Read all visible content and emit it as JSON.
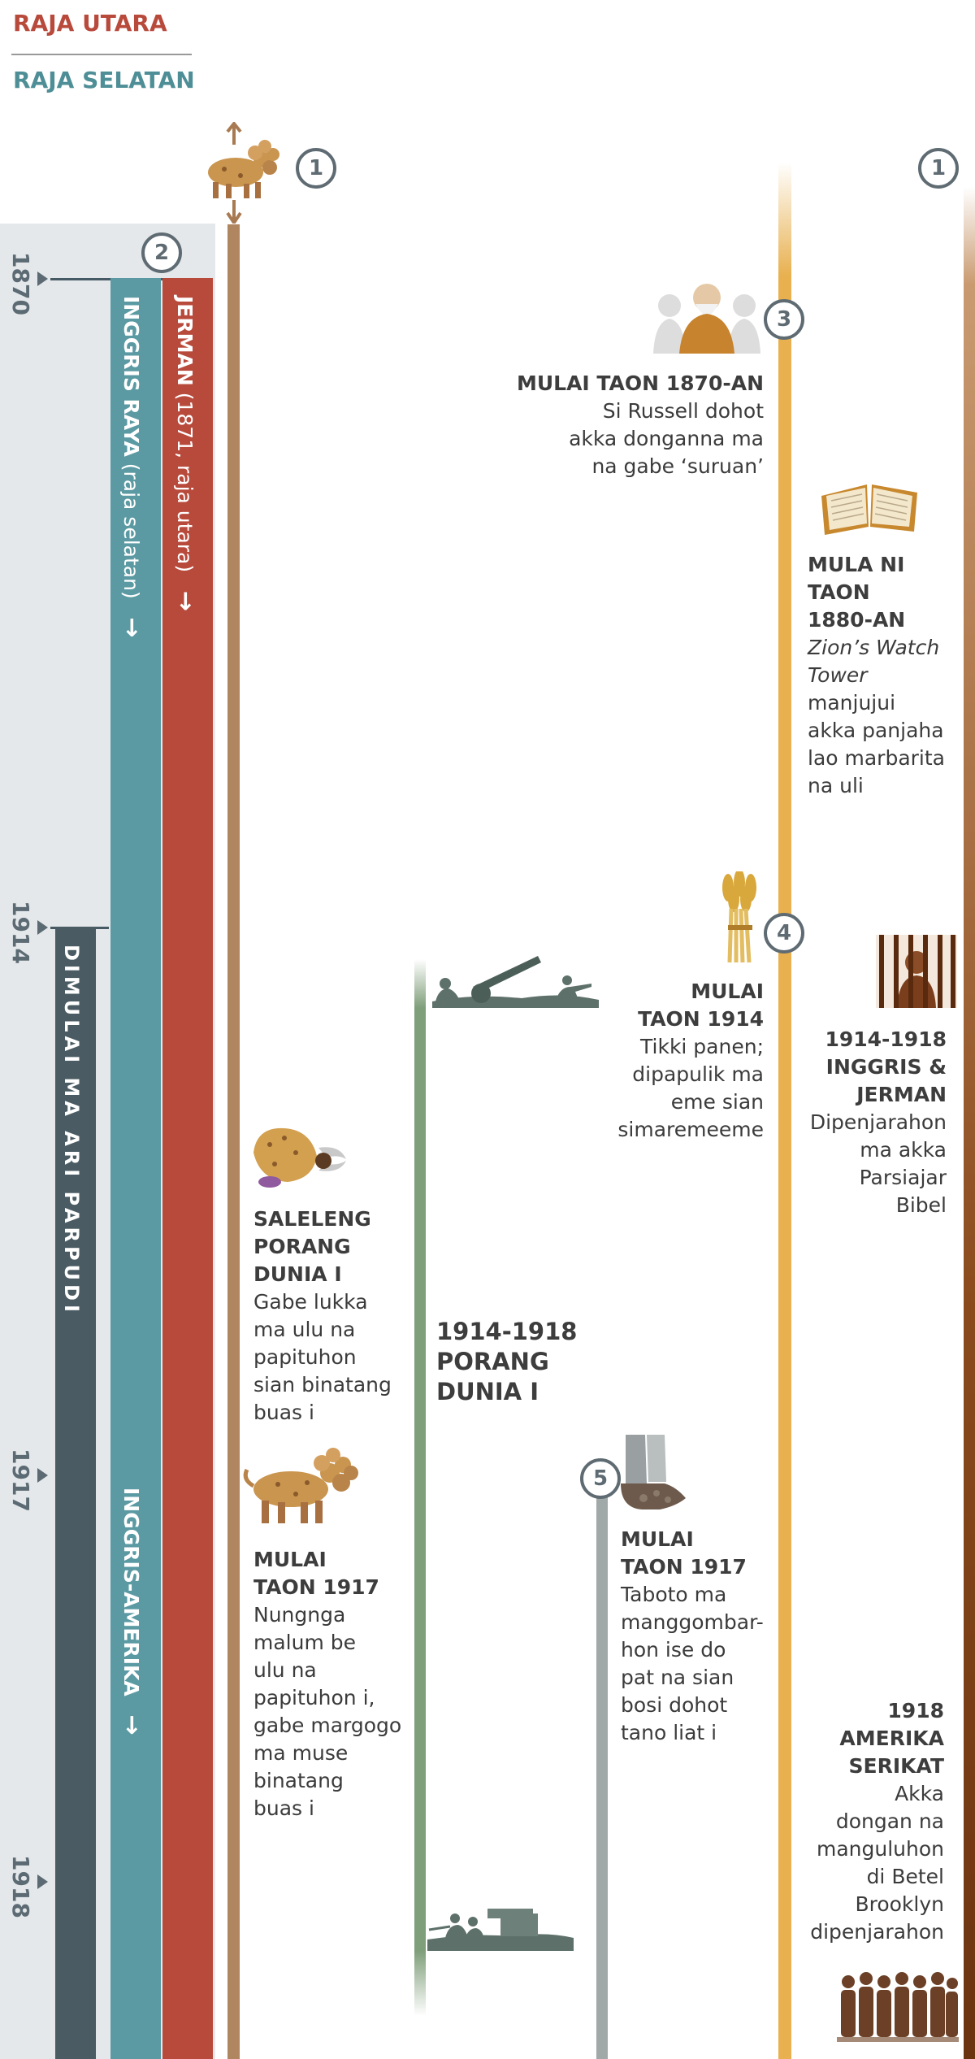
{
  "legend": {
    "north": "RAJA UTARA",
    "south": "RAJA SELATAN"
  },
  "colors": {
    "north": "#b84a3c",
    "south": "#4e8e96",
    "dark": "#455a64",
    "gold": "#e8b04f",
    "brown": "#7a3a10",
    "green": "#7f9e7a",
    "grey": "#a0a8a8"
  },
  "years": {
    "y1870": "1870",
    "y1914": "1914",
    "y1917": "1917",
    "y1918": "1918"
  },
  "markers": {
    "m1a": "1",
    "m1b": "1",
    "m2": "2",
    "m3": "3",
    "m4": "4",
    "m5": "5"
  },
  "bars": {
    "german": {
      "bold": "JERMAN",
      "rest": " (1871, raja utara)",
      "arrow": "→"
    },
    "britain": {
      "bold": "INGGRIS RAYA",
      "rest": " (raja selatan)",
      "arrow": "→"
    },
    "anglo": {
      "bold": "INGGRIS-AMERIKA",
      "arrow": "→"
    },
    "lastdays": {
      "label": "DIMULAI MA ARI PARPUDI"
    }
  },
  "events": {
    "russell": {
      "head": "MULAI TAON 1870-AN",
      "lines": [
        "Si Russell dohot",
        "akka donganna ma",
        "na gabe ‘suruan’"
      ]
    },
    "zion": {
      "head": [
        "MULA NI",
        "TAON",
        "1880-AN"
      ],
      "italic": [
        "Zion’s Watch",
        "Tower"
      ],
      "lines": [
        "manjujui",
        "akka panjaha",
        "lao marbarita",
        "na uli"
      ]
    },
    "harvest": {
      "head": [
        "MULAI",
        "TAON 1914"
      ],
      "lines": [
        "Tikki panen;",
        "dipapulik ma",
        "eme sian",
        "simaremeeme"
      ]
    },
    "prison": {
      "head": [
        "1914-1918",
        "INGGRIS &",
        "JERMAN"
      ],
      "lines": [
        "Dipenjarahon",
        "ma akka",
        "Parsiajar",
        "Bibel"
      ]
    },
    "wound": {
      "head": [
        "SALELENG",
        "PORANG",
        "DUNIA I"
      ],
      "lines": [
        "Gabe lukka",
        "ma ulu na",
        "papituhon",
        "sian binatang",
        "buas i"
      ]
    },
    "war": {
      "head": [
        "1914-1918",
        "PORANG",
        "DUNIA I"
      ]
    },
    "beast1917": {
      "head": [
        "MULAI",
        "TAON 1917"
      ],
      "lines": [
        "Nungnga",
        "malum be",
        "ulu na",
        "papituhon i,",
        "gabe margogo",
        "ma muse",
        "binatang",
        "buas i"
      ]
    },
    "feet": {
      "head": [
        "MULAI",
        "TAON 1917"
      ],
      "lines": [
        "Taboto ma",
        "manggombar-",
        "hon ise do",
        "pat na sian",
        "bosi dohot",
        "tano liat i"
      ]
    },
    "usa": {
      "head": [
        "1918",
        "AMERIKA",
        "SERIKAT"
      ],
      "lines": [
        "Akka",
        "dongan na",
        "manguluhon",
        "di Betel",
        "Brooklyn",
        "dipenjarahon"
      ]
    }
  }
}
